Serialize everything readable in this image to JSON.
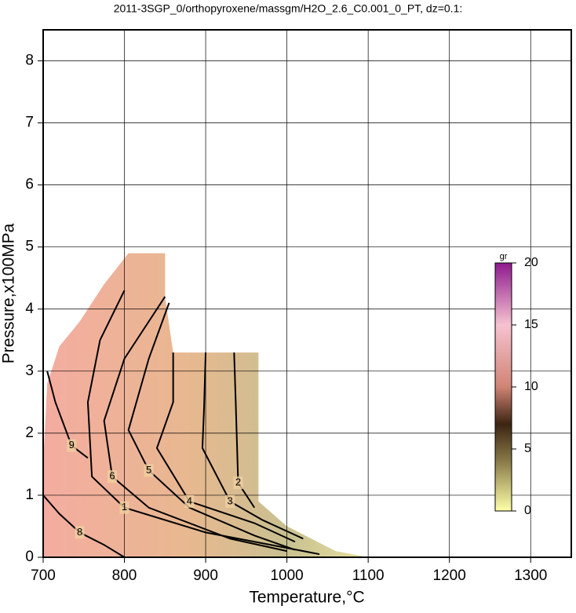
{
  "chart_data": {
    "type": "contour",
    "title": "2011-3SGP_0/orthopyroxene/massgm/H2O_2.6_C0.001_0_PT, dz=0.1:",
    "x_label": "Temperature,°C",
    "y_label": "Pressure,x100MPa",
    "xlim": [
      700,
      1350
    ],
    "ylim": [
      0,
      8.5
    ],
    "xticks": [
      700,
      800,
      900,
      1000,
      1100,
      1200,
      1300
    ],
    "yticks": [
      0,
      1,
      2,
      3,
      4,
      5,
      6,
      7,
      8
    ],
    "grid": true,
    "region": {
      "x": [
        700,
        700,
        705,
        720,
        745,
        775,
        805,
        850,
        850,
        860,
        965,
        965,
        1000,
        1060,
        1100
      ],
      "y": [
        0,
        1.5,
        2.8,
        3.4,
        3.8,
        4.4,
        4.9,
        4.9,
        4.2,
        3.3,
        3.3,
        0.9,
        0.5,
        0.1,
        0
      ]
    },
    "contours": [
      {
        "level": 9,
        "x": [
          705,
          715,
          735,
          755
        ],
        "y": [
          3.0,
          2.5,
          1.8,
          1.6
        ]
      },
      {
        "level": 8,
        "x": [
          700,
          720,
          745,
          775,
          800
        ],
        "y": [
          1.0,
          0.7,
          0.4,
          0.2,
          0.0
        ]
      },
      {
        "level": 1,
        "x": [
          800,
          770,
          755,
          760,
          800,
          900,
          1000,
          1040
        ],
        "y": [
          4.3,
          3.5,
          2.5,
          1.3,
          0.8,
          0.4,
          0.15,
          0.05
        ]
      },
      {
        "level": 6,
        "x": [
          850,
          800,
          775,
          785,
          830,
          930,
          1000
        ],
        "y": [
          4.2,
          3.2,
          2.2,
          1.3,
          0.8,
          0.3,
          0.1
        ]
      },
      {
        "level": 5,
        "x": [
          855,
          830,
          805,
          830,
          880,
          960,
          1010
        ],
        "y": [
          4.1,
          3.2,
          2.05,
          1.4,
          0.8,
          0.35,
          0.12
        ]
      },
      {
        "level": 4,
        "x": [
          860,
          860,
          840,
          880,
          960,
          1010
        ],
        "y": [
          3.3,
          2.5,
          1.76,
          0.9,
          0.55,
          0.25
        ]
      },
      {
        "level": 3,
        "x": [
          900,
          898,
          896,
          930,
          970,
          1020
        ],
        "y": [
          3.3,
          2.4,
          1.76,
          0.9,
          0.6,
          0.3
        ]
      },
      {
        "level": 2,
        "x": [
          935,
          937,
          940,
          960
        ],
        "y": [
          3.3,
          2.5,
          1.2,
          0.8
        ]
      }
    ],
    "colorbar": {
      "label": "gr",
      "lim": [
        0,
        20
      ],
      "ticks": [
        0,
        5,
        10,
        15,
        20
      ],
      "stops": [
        [
          0,
          "#ffffa8"
        ],
        [
          4,
          "#8a7a48"
        ],
        [
          7,
          "#3c2412"
        ],
        [
          10,
          "#d08474"
        ],
        [
          15,
          "#f6c2d0"
        ],
        [
          20,
          "#8e1a8e"
        ]
      ]
    }
  }
}
